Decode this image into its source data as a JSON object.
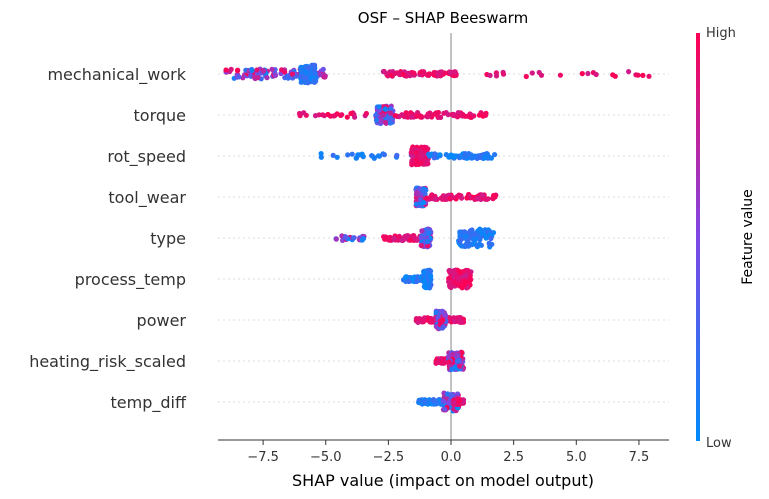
{
  "chart_data": {
    "type": "scatter",
    "title": "OSF – SHAP Beeswarm",
    "xlabel": "SHAP value (impact on model output)",
    "xlim": [
      -9.3,
      8.7
    ],
    "xticks": [
      -7.5,
      -5.0,
      -2.5,
      0.0,
      2.5,
      5.0,
      7.5
    ],
    "xtick_labels": [
      "−7.5",
      "−5.0",
      "−2.5",
      "0.0",
      "2.5",
      "5.0",
      "7.5"
    ],
    "colorbar": {
      "label": "Feature value",
      "high": "High",
      "low": "Low",
      "low_color": "#008bfb",
      "high_color": "#ff0052"
    },
    "features": [
      {
        "name": "mechanical_work",
        "clusters": [
          {
            "from": -9.0,
            "to": -5.0,
            "color": "mixed",
            "density": "high"
          },
          {
            "from": -6.0,
            "to": -5.4,
            "color": "low",
            "density": "dense"
          },
          {
            "from": -2.7,
            "to": 0.4,
            "color": "high",
            "density": "medium"
          },
          {
            "from": 1.3,
            "to": 8.1,
            "color": "high",
            "density": "sparse"
          }
        ]
      },
      {
        "name": "torque",
        "clusters": [
          {
            "from": -6.2,
            "to": -3.3,
            "color": "high",
            "density": "sparse"
          },
          {
            "from": -3.0,
            "to": -2.3,
            "color": "mixed",
            "density": "dense"
          },
          {
            "from": -2.3,
            "to": 1.4,
            "color": "high",
            "density": "medium"
          }
        ]
      },
      {
        "name": "rot_speed",
        "clusters": [
          {
            "from": -5.2,
            "to": -1.4,
            "color": "low",
            "density": "sparse"
          },
          {
            "from": -1.6,
            "to": -0.9,
            "color": "high",
            "density": "dense"
          },
          {
            "from": -0.9,
            "to": 1.8,
            "color": "low",
            "density": "medium"
          }
        ]
      },
      {
        "name": "tool_wear",
        "clusters": [
          {
            "from": -1.4,
            "to": -1.0,
            "color": "mixed",
            "density": "dense"
          },
          {
            "from": -1.0,
            "to": 1.8,
            "color": "high",
            "density": "medium"
          }
        ]
      },
      {
        "name": "type",
        "clusters": [
          {
            "from": -4.7,
            "to": -3.4,
            "color": "mixed",
            "density": "sparse"
          },
          {
            "from": -2.7,
            "to": -1.0,
            "color": "high",
            "density": "medium"
          },
          {
            "from": -1.2,
            "to": -0.8,
            "color": "mixed",
            "density": "dense"
          },
          {
            "from": 0.3,
            "to": 1.7,
            "color": "low",
            "density": "dense"
          }
        ]
      },
      {
        "name": "process_temp",
        "clusters": [
          {
            "from": -1.9,
            "to": -0.9,
            "color": "low",
            "density": "medium"
          },
          {
            "from": -1.1,
            "to": -0.8,
            "color": "low",
            "density": "dense"
          },
          {
            "from": -0.1,
            "to": 0.8,
            "color": "high",
            "density": "dense"
          }
        ]
      },
      {
        "name": "power",
        "clusters": [
          {
            "from": -1.4,
            "to": 0.5,
            "color": "high",
            "density": "medium"
          },
          {
            "from": -0.6,
            "to": -0.2,
            "color": "mixed",
            "density": "dense"
          }
        ]
      },
      {
        "name": "heating_risk_scaled",
        "clusters": [
          {
            "from": -0.6,
            "to": -0.1,
            "color": "high",
            "density": "medium"
          },
          {
            "from": -0.1,
            "to": 0.5,
            "color": "mixed",
            "density": "dense"
          }
        ]
      },
      {
        "name": "temp_diff",
        "clusters": [
          {
            "from": -1.3,
            "to": -0.3,
            "color": "low",
            "density": "medium"
          },
          {
            "from": -0.3,
            "to": 0.3,
            "color": "mixed",
            "density": "dense"
          },
          {
            "from": 0.1,
            "to": 0.5,
            "color": "high",
            "density": "medium"
          }
        ]
      }
    ]
  }
}
